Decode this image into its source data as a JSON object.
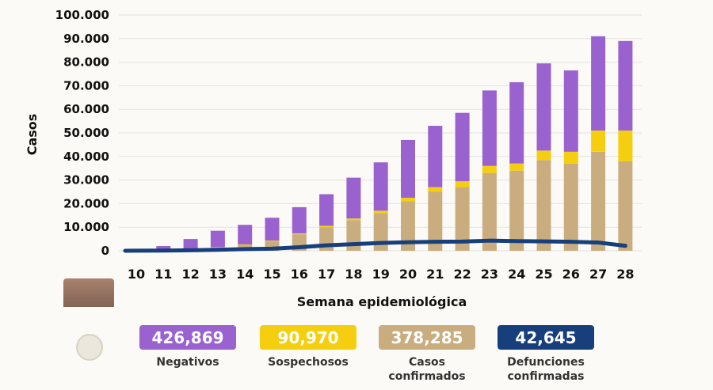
{
  "chart_data": {
    "type": "bar",
    "stacked": true,
    "title": "",
    "xlabel": "Semana epidemiológica",
    "ylabel": "Casos",
    "ylim": [
      0,
      100000
    ],
    "yticks": [
      "0",
      "10.000",
      "20.000",
      "30.000",
      "40.000",
      "50.000",
      "60.000",
      "70.000",
      "80.000",
      "90.000",
      "100.000"
    ],
    "grid": true,
    "categories": [
      "10",
      "11",
      "12",
      "13",
      "14",
      "15",
      "16",
      "17",
      "18",
      "19",
      "20",
      "21",
      "22",
      "23",
      "24",
      "25",
      "26",
      "27",
      "28"
    ],
    "series": [
      {
        "name": "Casos confirmados",
        "color": "#c9ad7f",
        "values": [
          100,
          300,
          600,
          1500,
          2500,
          4000,
          7000,
          10000,
          13000,
          16000,
          21000,
          25000,
          27000,
          33000,
          34000,
          38500,
          37000,
          42000,
          38000
        ]
      },
      {
        "name": "Sospechosos",
        "color": "#f5cf0f",
        "values": [
          0,
          0,
          0,
          100,
          200,
          300,
          400,
          600,
          700,
          1000,
          1500,
          2000,
          2500,
          3000,
          3000,
          4000,
          5000,
          9000,
          13000
        ]
      },
      {
        "name": "Negativos",
        "color": "#9a62cf",
        "values": [
          400,
          1700,
          4400,
          6900,
          8300,
          9700,
          11100,
          13400,
          17300,
          20500,
          24500,
          26000,
          29000,
          32000,
          34500,
          37000,
          34500,
          40000,
          38000
        ]
      },
      {
        "name": "Defunciones confirmadas",
        "type": "line",
        "color": "#163f7c",
        "values": [
          50,
          100,
          200,
          400,
          700,
          900,
          1500,
          2300,
          2800,
          3300,
          3600,
          3800,
          3900,
          4300,
          4100,
          4000,
          3800,
          3500,
          2100
        ]
      }
    ]
  },
  "legend": [
    {
      "value": "426,869",
      "label": "Negativos",
      "color": "#9a62cf"
    },
    {
      "value": "90,970",
      "label": "Sospechosos",
      "color": "#f5cf0f"
    },
    {
      "value": "378,285",
      "label": "Casos confirmados",
      "color": "#c9ad7f"
    },
    {
      "value": "42,645",
      "label": "Defunciones confirmadas",
      "color": "#163f7c"
    }
  ]
}
